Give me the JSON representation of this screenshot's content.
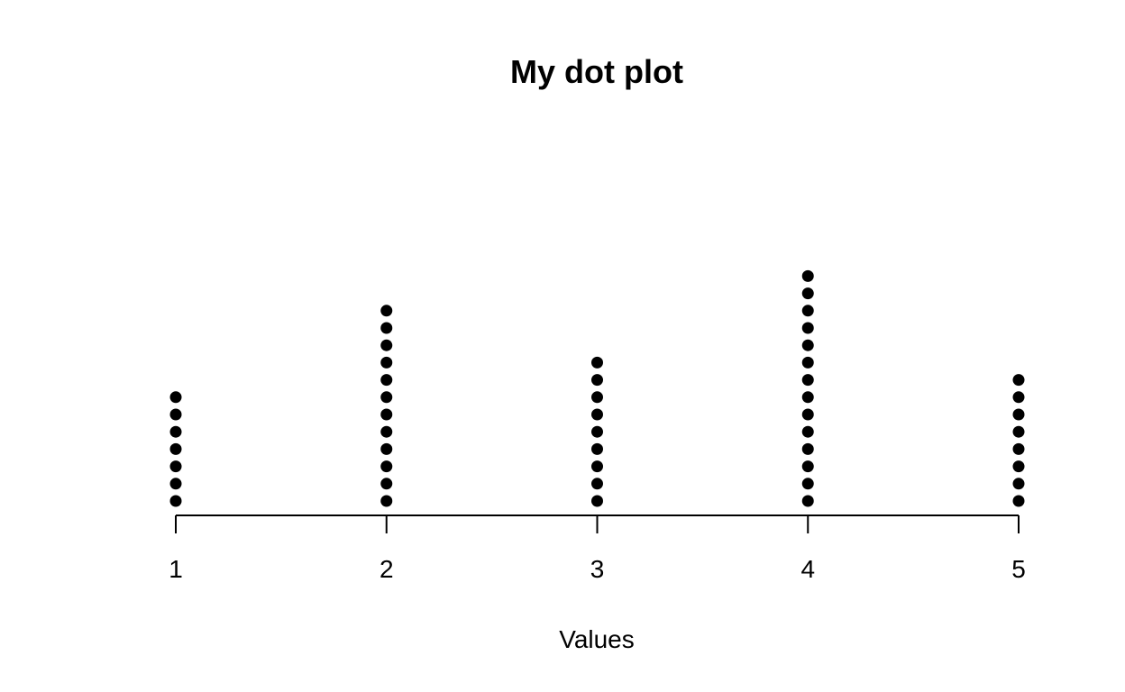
{
  "chart_data": {
    "type": "scatter",
    "subtype": "dot-plot",
    "title": "My dot plot",
    "xlabel": "Values",
    "ylabel": "",
    "x": [
      1,
      2,
      3,
      4,
      5
    ],
    "counts": [
      7,
      12,
      9,
      14,
      8
    ],
    "xticks": [
      "1",
      "2",
      "3",
      "4",
      "5"
    ],
    "xlim": [
      1,
      5
    ],
    "grid": false,
    "legend": "none",
    "dot_color": "#000000"
  }
}
